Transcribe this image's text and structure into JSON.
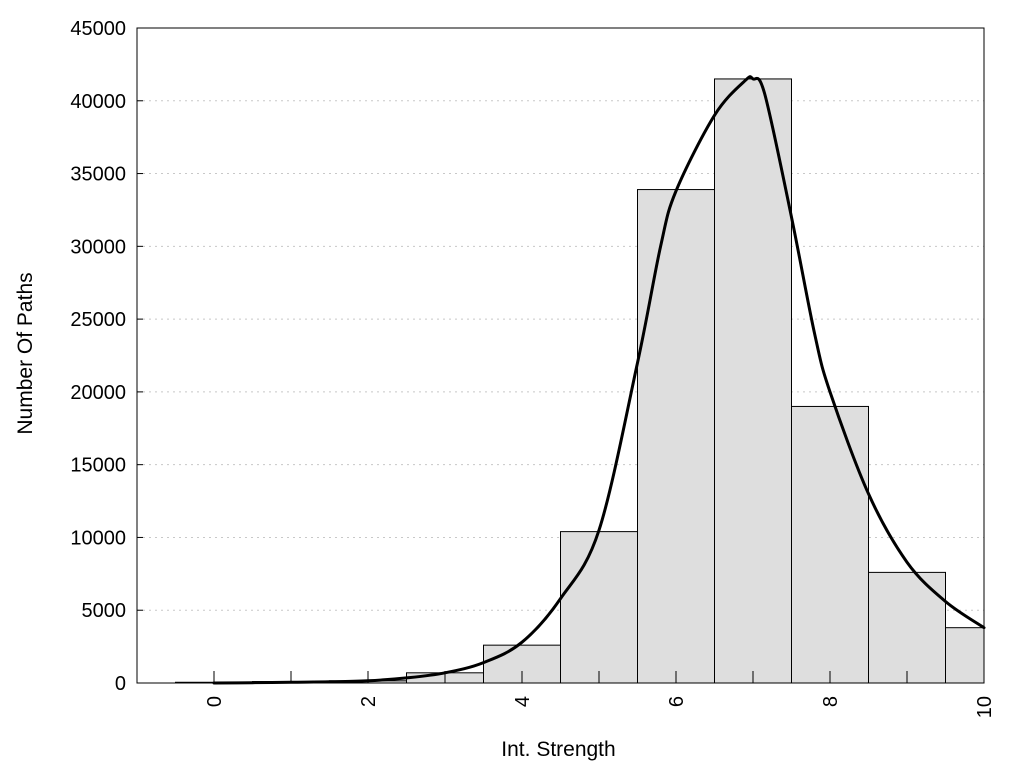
{
  "chart_data": {
    "type": "bar",
    "xlabel": "Int. Strength",
    "ylabel": "Number Of Paths",
    "xlim": [
      -1,
      10
    ],
    "ylim": [
      0,
      45000
    ],
    "x_ticks": [
      0,
      2,
      4,
      6,
      8,
      10
    ],
    "y_ticks": [
      0,
      5000,
      10000,
      15000,
      20000,
      25000,
      30000,
      35000,
      40000,
      45000
    ],
    "grid": true,
    "bin_width": 1,
    "bars": {
      "x": [
        0,
        1,
        2,
        3,
        4,
        5,
        6,
        7,
        8,
        9,
        10
      ],
      "values": [
        50,
        100,
        150,
        700,
        2600,
        10400,
        33900,
        41500,
        19000,
        7600,
        3800
      ]
    },
    "curve": {
      "x": [
        0,
        0.5,
        1,
        1.5,
        2,
        2.5,
        3,
        3.5,
        4,
        4.5,
        5,
        5.5,
        5.8,
        6,
        6.5,
        6.9,
        7,
        7.15,
        7.5,
        7.8,
        8,
        8.5,
        9,
        9.5,
        10
      ],
      "y": [
        0,
        20,
        50,
        80,
        150,
        350,
        700,
        1400,
        2800,
        5800,
        10500,
        22000,
        30000,
        33800,
        39000,
        41400,
        41500,
        40500,
        32000,
        24000,
        20000,
        13000,
        8300,
        5600,
        3800
      ]
    }
  }
}
